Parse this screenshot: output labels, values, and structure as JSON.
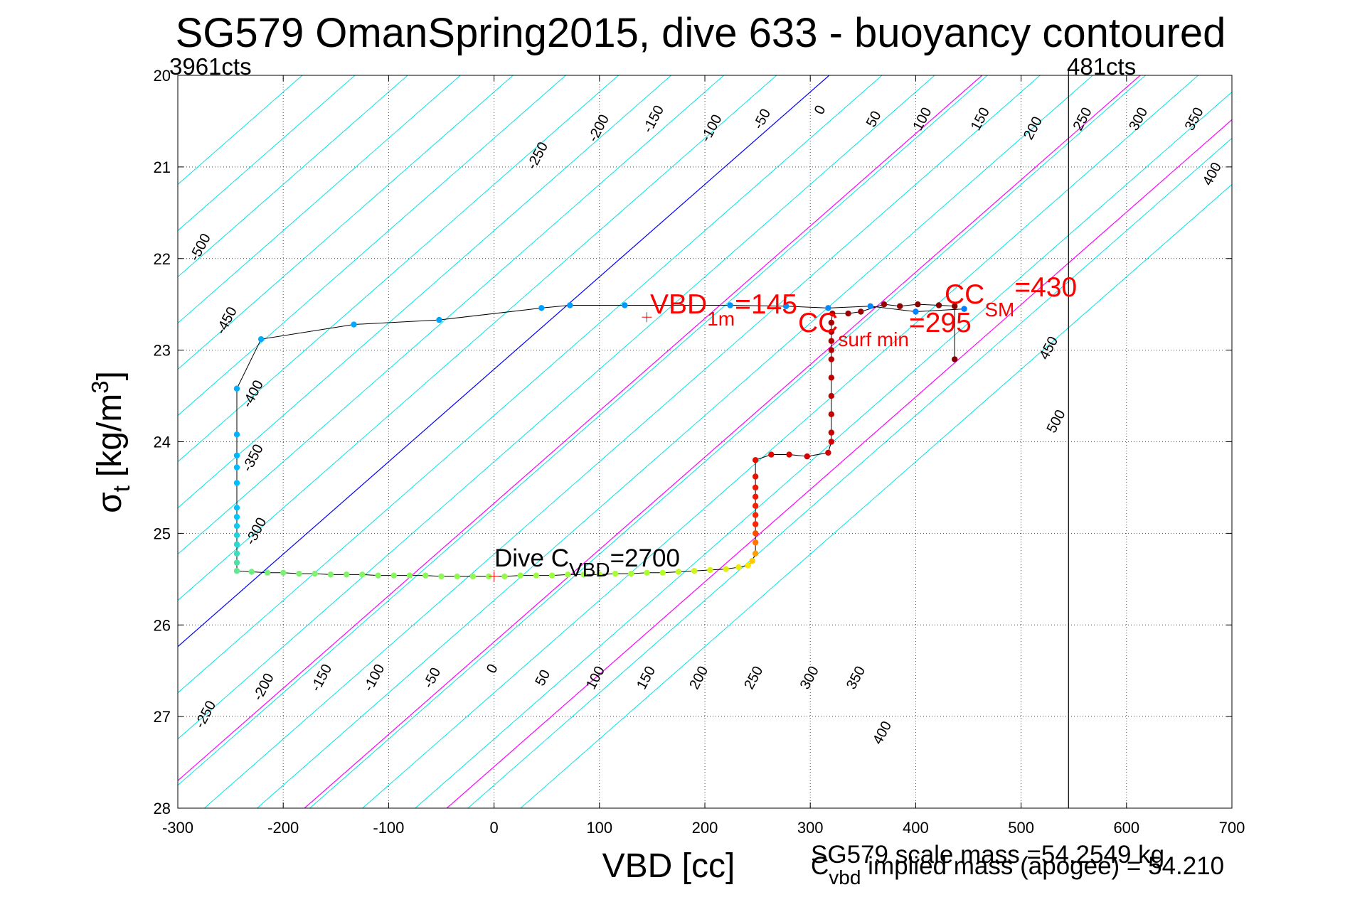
{
  "chart_data": {
    "type": "scatter",
    "title": "SG579 OmanSpring2015, dive 633 - buoyancy contoured",
    "xlabel": "VBD [cc]",
    "ylabel_symbol": "σ",
    "ylabel_sub": "t",
    "ylabel_unit": "[kg/m",
    "ylabel_sup": "3",
    "ylabel_close": "]",
    "xlim": [
      -300,
      700
    ],
    "ylim": [
      20,
      28
    ],
    "y_reversed": true,
    "grid": true,
    "x_ticks": [
      -300,
      -200,
      -100,
      0,
      100,
      200,
      300,
      400,
      500,
      600,
      700
    ],
    "y_ticks": [
      20,
      21,
      22,
      23,
      24,
      25,
      26,
      27,
      28
    ],
    "corner_left_label": "3961cts",
    "corner_right_label": "481cts",
    "counts_line_x": 545,
    "colors": {
      "contour": "#00e5e5",
      "zero_contour": "#0000ff",
      "highlight_contour": "#ff00ff",
      "track": "#000000",
      "annotation_red": "#ff0000",
      "annotation_black": "#000000"
    },
    "contours": {
      "levels": [
        -500,
        -450,
        -400,
        -350,
        -300,
        -250,
        -200,
        -150,
        -100,
        -50,
        0,
        50,
        100,
        150,
        200,
        250,
        300,
        350,
        400,
        450,
        500
      ],
      "highlight_levels": [
        145,
        295,
        430
      ],
      "top_labels": [
        {
          "level": -500,
          "x": -275,
          "y": 21.9
        },
        {
          "level": -450,
          "x": -250,
          "y": 22.7
        },
        {
          "level": -400,
          "x": -225,
          "y": 23.5
        },
        {
          "level": -350,
          "x": -225,
          "y": 24.2
        },
        {
          "level": -300,
          "x": -222,
          "y": 25.0
        },
        {
          "level": -250,
          "x": 45,
          "y": 20.9
        },
        {
          "level": -200,
          "x": 103,
          "y": 20.6
        },
        {
          "level": -150,
          "x": 155,
          "y": 20.5
        },
        {
          "level": -100,
          "x": 210,
          "y": 20.6
        },
        {
          "level": -50,
          "x": 258,
          "y": 20.5
        },
        {
          "level": 0,
          "x": 313,
          "y": 20.4
        },
        {
          "level": 50,
          "x": 364,
          "y": 20.5
        },
        {
          "level": 100,
          "x": 410,
          "y": 20.5
        },
        {
          "level": 150,
          "x": 465,
          "y": 20.5
        },
        {
          "level": 200,
          "x": 515,
          "y": 20.6
        },
        {
          "level": 250,
          "x": 562,
          "y": 20.5
        },
        {
          "level": 300,
          "x": 615,
          "y": 20.5
        },
        {
          "level": 350,
          "x": 668,
          "y": 20.5
        },
        {
          "level": 400,
          "x": 685,
          "y": 21.1
        },
        {
          "level": 450,
          "x": 530,
          "y": 23.0
        },
        {
          "level": 500,
          "x": 537,
          "y": 23.8
        }
      ],
      "bottom_labels": [
        {
          "level": -250,
          "x": -270,
          "y": 27.0
        },
        {
          "level": -200,
          "x": -215,
          "y": 26.7
        },
        {
          "level": -150,
          "x": -160,
          "y": 26.6
        },
        {
          "level": -100,
          "x": -110,
          "y": 26.6
        },
        {
          "level": -50,
          "x": -55,
          "y": 26.6
        },
        {
          "level": 0,
          "x": 2,
          "y": 26.5
        },
        {
          "level": 50,
          "x": 50,
          "y": 26.6
        },
        {
          "level": 100,
          "x": 100,
          "y": 26.6
        },
        {
          "level": 150,
          "x": 148,
          "y": 26.6
        },
        {
          "level": 200,
          "x": 198,
          "y": 26.6
        },
        {
          "level": 250,
          "x": 250,
          "y": 26.6
        },
        {
          "level": 300,
          "x": 303,
          "y": 26.6
        },
        {
          "level": 350,
          "x": 347,
          "y": 26.6
        },
        {
          "level": 400,
          "x": 372,
          "y": 27.2
        }
      ]
    },
    "series": [
      {
        "name": "",
        "points": [
          [
            446,
            22.55
          ],
          [
            400,
            22.58
          ],
          [
            357,
            22.52
          ],
          [
            317,
            22.54
          ],
          [
            277,
            22.52
          ],
          [
            224,
            22.51
          ],
          [
            124,
            22.51
          ],
          [
            72,
            22.51
          ],
          [
            45,
            22.54
          ],
          [
            -52,
            22.67
          ],
          [
            -133,
            22.72
          ],
          [
            -221,
            22.88
          ],
          [
            -244,
            23.42
          ],
          [
            -244,
            23.92
          ],
          [
            -244,
            24.15
          ],
          [
            -244,
            24.28
          ],
          [
            -244,
            24.45
          ],
          [
            -244,
            24.72
          ],
          [
            -244,
            24.82
          ],
          [
            -244,
            24.92
          ],
          [
            -244,
            25.02
          ],
          [
            -244,
            25.12
          ],
          [
            -244,
            25.22
          ],
          [
            -244,
            25.32
          ],
          [
            -244,
            25.41
          ],
          [
            -230,
            25.42
          ],
          [
            -215,
            25.43
          ],
          [
            -200,
            25.43
          ],
          [
            -185,
            25.44
          ],
          [
            -170,
            25.44
          ],
          [
            -155,
            25.45
          ],
          [
            -140,
            25.45
          ],
          [
            -125,
            25.45
          ],
          [
            -110,
            25.46
          ],
          [
            -95,
            25.46
          ],
          [
            -80,
            25.46
          ],
          [
            -65,
            25.46
          ],
          [
            -50,
            25.47
          ],
          [
            -35,
            25.47
          ],
          [
            -20,
            25.47
          ],
          [
            -5,
            25.47
          ],
          [
            10,
            25.47
          ],
          [
            25,
            25.46
          ],
          [
            40,
            25.46
          ],
          [
            55,
            25.46
          ],
          [
            70,
            25.45
          ],
          [
            85,
            25.45
          ],
          [
            100,
            25.45
          ],
          [
            115,
            25.44
          ],
          [
            130,
            25.44
          ],
          [
            145,
            25.43
          ],
          [
            160,
            25.43
          ],
          [
            175,
            25.42
          ],
          [
            190,
            25.41
          ],
          [
            205,
            25.4
          ],
          [
            220,
            25.39
          ],
          [
            232,
            25.37
          ],
          [
            241,
            25.35
          ],
          [
            245,
            25.3
          ],
          [
            248,
            25.22
          ],
          [
            248,
            25.1
          ],
          [
            248,
            25.0
          ],
          [
            248,
            24.9
          ],
          [
            248,
            24.8
          ],
          [
            248,
            24.7
          ],
          [
            248,
            24.6
          ],
          [
            248,
            24.5
          ],
          [
            248,
            24.38
          ],
          [
            248,
            24.2
          ],
          [
            263,
            24.14
          ],
          [
            280,
            24.14
          ],
          [
            297,
            24.16
          ],
          [
            317,
            24.12
          ],
          [
            320,
            24.0
          ],
          [
            320,
            23.9
          ],
          [
            320,
            23.7
          ],
          [
            320,
            23.5
          ],
          [
            320,
            23.3
          ],
          [
            320,
            23.1
          ],
          [
            320,
            23.0
          ],
          [
            320,
            22.9
          ],
          [
            320,
            22.8
          ],
          [
            320,
            22.7
          ],
          [
            321,
            22.6
          ],
          [
            336,
            22.6
          ],
          [
            348,
            22.58
          ],
          [
            370,
            22.5
          ],
          [
            385,
            22.52
          ],
          [
            402,
            22.5
          ],
          [
            422,
            22.51
          ],
          [
            437,
            22.52
          ],
          [
            437,
            23.1
          ]
        ]
      }
    ],
    "annotations": [
      {
        "id": "dive-cvbd",
        "base": "Dive C",
        "sub": "VBD",
        "tail": "=2700",
        "color": "black",
        "marker": [
          0,
          25.47
        ]
      },
      {
        "id": "vbd-1m",
        "base": "VBD",
        "sub": "1m",
        "tail": "=145",
        "color": "red",
        "marker": [
          145,
          22.64
        ]
      },
      {
        "id": "cc-surf-min",
        "base": "CC",
        "sub": "surf min",
        "tail": "=295",
        "color": "red"
      },
      {
        "id": "cc-sm",
        "base": "CC",
        "sub": "SM",
        "tail": "=430",
        "color": "red"
      }
    ],
    "footer_scale_mass": "SG579 scale mass =54.2549 kg",
    "footer_implied_base": "C",
    "footer_implied_sub": "vbd",
    "footer_implied_tail": " implied mass (apogee) = 54.210"
  }
}
